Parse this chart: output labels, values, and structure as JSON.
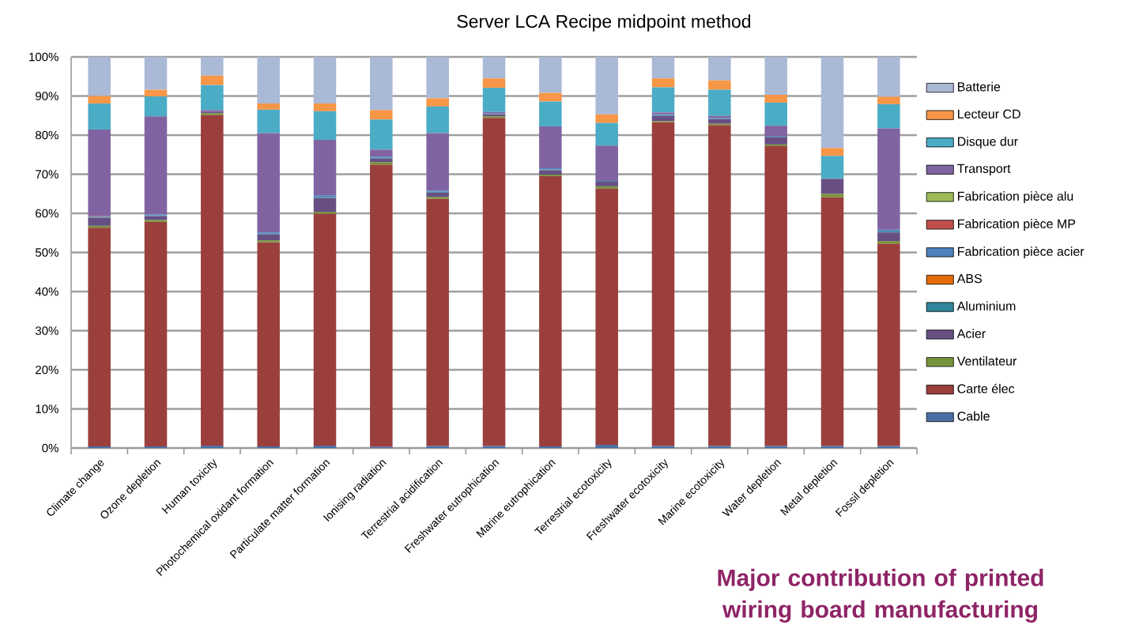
{
  "chart_data": {
    "type": "bar",
    "title": "Server LCA Recipe midpoint method",
    "categories": [
      "Climate change",
      "Ozone depletion",
      "Human toxicity",
      "Photochemical oxidant formation",
      "Particulate matter formation",
      "Ionising radiation",
      "Terrestrial acidification",
      "Freshwater eutrophication",
      "Marine eutrophication",
      "Terrestrial ecotoxicity",
      "Freshwater ecotoxicity",
      "Marine ecotoxicity",
      "Water depletion",
      "Metal depletion",
      "Fossil depletion"
    ],
    "stacked": true,
    "grid": "y",
    "legend": "right",
    "ylim": [
      0,
      100
    ],
    "yticks": [
      {
        "value": 0,
        "label": "0%"
      },
      {
        "value": 10,
        "label": "10%"
      },
      {
        "value": 20,
        "label": "20%"
      },
      {
        "value": 30,
        "label": "30%"
      },
      {
        "value": 40,
        "label": "40%"
      },
      {
        "value": 50,
        "label": "50%"
      },
      {
        "value": 60,
        "label": "60%"
      },
      {
        "value": 70,
        "label": "70%"
      },
      {
        "value": 80,
        "label": "80%"
      },
      {
        "value": 90,
        "label": "90%"
      },
      {
        "value": 100,
        "label": "100%"
      }
    ],
    "series": [
      {
        "name": "Cable",
        "color": "#4a6fa5",
        "values": [
          0.4,
          0.4,
          0.6,
          0.4,
          0.6,
          0.3,
          0.5,
          0.5,
          0.4,
          0.8,
          0.5,
          0.5,
          0.5,
          0.5,
          0.5
        ]
      },
      {
        "name": "Carte élec",
        "color": "#9b3f3c",
        "values": [
          55.9,
          57.4,
          84.5,
          52.2,
          59.3,
          72.1,
          63.2,
          83.9,
          69.1,
          65.5,
          82.8,
          82.0,
          76.7,
          63.6,
          51.7
        ]
      },
      {
        "name": "Ventilateur",
        "color": "#77933c",
        "values": [
          0.5,
          0.5,
          0.5,
          0.5,
          0.5,
          0.7,
          0.5,
          0.4,
          0.4,
          0.6,
          0.3,
          0.4,
          0.4,
          0.9,
          0.7
        ]
      },
      {
        "name": "Acier",
        "color": "#674f84",
        "values": [
          2.1,
          1.0,
          0.3,
          1.5,
          3.5,
          0.9,
          1.1,
          0.5,
          1.1,
          1.2,
          1.3,
          1.2,
          1.9,
          3.8,
          2.2
        ]
      },
      {
        "name": "Aluminium",
        "color": "#31859c",
        "values": [
          0.2,
          0.2,
          0,
          0.2,
          0.2,
          0.2,
          0.2,
          0.1,
          0.2,
          0.2,
          0.2,
          0.1,
          0.1,
          0.2,
          0.3
        ]
      },
      {
        "name": "ABS",
        "color": "#e46c0a",
        "values": [
          0,
          0,
          0,
          0,
          0,
          0,
          0,
          0,
          0,
          0,
          0,
          0,
          0,
          0,
          0
        ]
      },
      {
        "name": "Fabrication pièce acier",
        "color": "#4f81bd",
        "values": [
          0.1,
          0.2,
          0,
          0.3,
          0.5,
          0.3,
          0.3,
          0.1,
          0.3,
          0,
          0.2,
          0.2,
          0.2,
          0,
          0.4
        ]
      },
      {
        "name": "Fabrication pièce MP",
        "color": "#c0504d",
        "values": [
          0.1,
          0,
          0,
          0,
          0,
          0,
          0,
          0,
          0,
          0,
          0,
          0,
          0,
          0,
          0
        ]
      },
      {
        "name": "Fabrication pièce alu",
        "color": "#9bbb59",
        "values": [
          0,
          0,
          0,
          0,
          0,
          0,
          0,
          0,
          0,
          0,
          0,
          0,
          0,
          0,
          0
        ]
      },
      {
        "name": "Transport",
        "color": "#8064a2",
        "values": [
          22.1,
          25.1,
          0.5,
          25.4,
          14.2,
          1.8,
          14.7,
          0.4,
          10.7,
          9.0,
          0.5,
          0.5,
          2.6,
          0,
          25.9
        ]
      },
      {
        "name": "Disque dur",
        "color": "#4bacc6",
        "values": [
          6.7,
          5.1,
          6.4,
          6.0,
          7.3,
          7.7,
          6.8,
          6.2,
          6.4,
          5.8,
          6.4,
          6.7,
          5.9,
          5.7,
          6.2
        ]
      },
      {
        "name": "Lecteur CD",
        "color": "#f79646",
        "values": [
          1.9,
          1.7,
          2.4,
          1.6,
          2.0,
          2.4,
          2.1,
          2.4,
          2.2,
          2.2,
          2.3,
          2.4,
          2.0,
          2.0,
          1.9
        ]
      },
      {
        "name": "Batterie",
        "color": "#aab9d6",
        "values": [
          10.0,
          8.4,
          4.8,
          11.9,
          11.9,
          13.6,
          10.6,
          5.5,
          9.2,
          14.7,
          5.5,
          6.0,
          9.7,
          23.3,
          10.2
        ]
      }
    ],
    "annotations": [
      "Major contribution of printed wiring board manufacturing"
    ]
  }
}
